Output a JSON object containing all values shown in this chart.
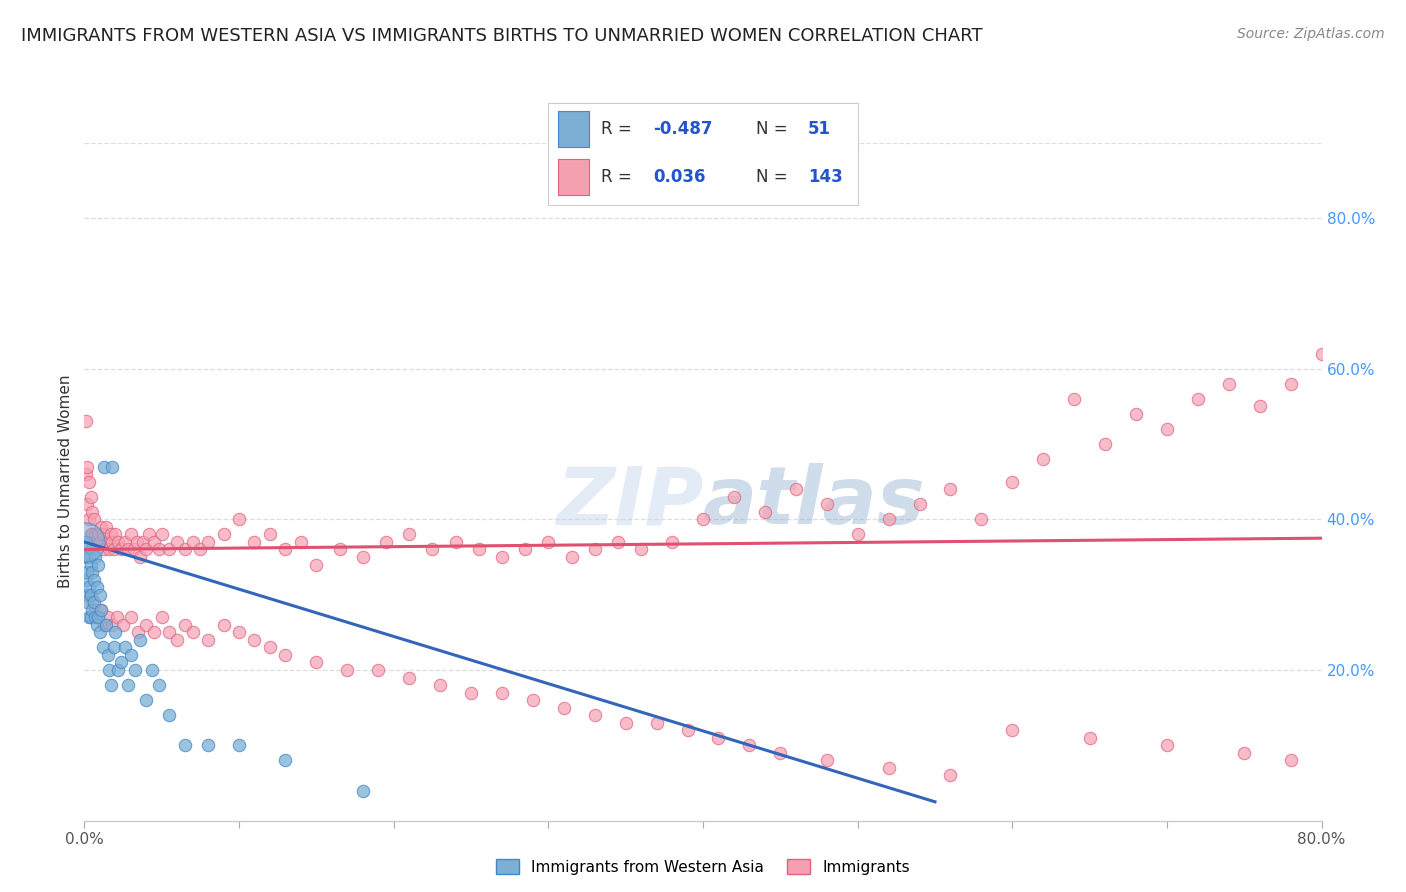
{
  "title": "IMMIGRANTS FROM WESTERN ASIA VS IMMIGRANTS BIRTHS TO UNMARRIED WOMEN CORRELATION CHART",
  "source": "Source: ZipAtlas.com",
  "ylabel": "Births to Unmarried Women",
  "right_yticks": [
    "80.0%",
    "60.0%",
    "40.0%",
    "20.0%"
  ],
  "right_ytick_vals": [
    0.8,
    0.6,
    0.4,
    0.2
  ],
  "color_blue": "#7BAFD4",
  "color_blue_edge": "#4488CC",
  "color_pink": "#F4A0B0",
  "color_pink_edge": "#E06080",
  "watermark": "ZIPatlas",
  "blue_scatter_x": [
    0.001,
    0.001,
    0.001,
    0.002,
    0.002,
    0.002,
    0.003,
    0.003,
    0.003,
    0.004,
    0.004,
    0.004,
    0.005,
    0.005,
    0.005,
    0.006,
    0.006,
    0.007,
    0.007,
    0.008,
    0.008,
    0.009,
    0.009,
    0.01,
    0.01,
    0.011,
    0.012,
    0.013,
    0.014,
    0.015,
    0.016,
    0.017,
    0.018,
    0.019,
    0.02,
    0.022,
    0.024,
    0.026,
    0.028,
    0.03,
    0.033,
    0.036,
    0.04,
    0.044,
    0.048,
    0.055,
    0.065,
    0.08,
    0.1,
    0.13,
    0.18
  ],
  "blue_scatter_y": [
    0.37,
    0.35,
    0.32,
    0.33,
    0.3,
    0.29,
    0.35,
    0.31,
    0.27,
    0.34,
    0.3,
    0.27,
    0.36,
    0.33,
    0.28,
    0.32,
    0.29,
    0.35,
    0.27,
    0.31,
    0.26,
    0.34,
    0.27,
    0.3,
    0.25,
    0.28,
    0.23,
    0.47,
    0.26,
    0.22,
    0.2,
    0.18,
    0.47,
    0.23,
    0.25,
    0.2,
    0.21,
    0.23,
    0.18,
    0.22,
    0.2,
    0.24,
    0.16,
    0.2,
    0.18,
    0.14,
    0.1,
    0.1,
    0.1,
    0.08,
    0.04
  ],
  "pink_scatter_x": [
    0.001,
    0.001,
    0.002,
    0.002,
    0.003,
    0.003,
    0.004,
    0.004,
    0.005,
    0.005,
    0.006,
    0.006,
    0.007,
    0.008,
    0.009,
    0.01,
    0.011,
    0.012,
    0.013,
    0.014,
    0.015,
    0.016,
    0.017,
    0.018,
    0.019,
    0.02,
    0.022,
    0.024,
    0.026,
    0.028,
    0.03,
    0.032,
    0.034,
    0.036,
    0.038,
    0.04,
    0.042,
    0.045,
    0.048,
    0.05,
    0.055,
    0.06,
    0.065,
    0.07,
    0.075,
    0.08,
    0.09,
    0.1,
    0.11,
    0.12,
    0.13,
    0.14,
    0.15,
    0.165,
    0.18,
    0.195,
    0.21,
    0.225,
    0.24,
    0.255,
    0.27,
    0.285,
    0.3,
    0.315,
    0.33,
    0.345,
    0.36,
    0.38,
    0.4,
    0.42,
    0.44,
    0.46,
    0.48,
    0.5,
    0.52,
    0.54,
    0.56,
    0.58,
    0.6,
    0.62,
    0.64,
    0.66,
    0.68,
    0.7,
    0.72,
    0.74,
    0.76,
    0.78,
    0.8,
    0.003,
    0.005,
    0.007,
    0.009,
    0.011,
    0.013,
    0.015,
    0.018,
    0.021,
    0.025,
    0.03,
    0.035,
    0.04,
    0.045,
    0.05,
    0.055,
    0.06,
    0.065,
    0.07,
    0.08,
    0.09,
    0.1,
    0.11,
    0.12,
    0.13,
    0.15,
    0.17,
    0.19,
    0.21,
    0.23,
    0.25,
    0.27,
    0.29,
    0.31,
    0.33,
    0.35,
    0.37,
    0.39,
    0.41,
    0.43,
    0.45,
    0.48,
    0.52,
    0.56,
    0.6,
    0.65,
    0.7,
    0.75,
    0.78
  ],
  "pink_scatter_y": [
    0.53,
    0.46,
    0.47,
    0.42,
    0.45,
    0.4,
    0.43,
    0.38,
    0.41,
    0.38,
    0.4,
    0.37,
    0.38,
    0.37,
    0.38,
    0.37,
    0.39,
    0.38,
    0.36,
    0.39,
    0.37,
    0.36,
    0.38,
    0.37,
    0.36,
    0.38,
    0.37,
    0.36,
    0.37,
    0.36,
    0.38,
    0.36,
    0.37,
    0.35,
    0.37,
    0.36,
    0.38,
    0.37,
    0.36,
    0.38,
    0.36,
    0.37,
    0.36,
    0.37,
    0.36,
    0.37,
    0.38,
    0.4,
    0.37,
    0.38,
    0.36,
    0.37,
    0.34,
    0.36,
    0.35,
    0.37,
    0.38,
    0.36,
    0.37,
    0.36,
    0.35,
    0.36,
    0.37,
    0.35,
    0.36,
    0.37,
    0.36,
    0.37,
    0.4,
    0.43,
    0.41,
    0.44,
    0.42,
    0.38,
    0.4,
    0.42,
    0.44,
    0.4,
    0.45,
    0.48,
    0.56,
    0.5,
    0.54,
    0.52,
    0.56,
    0.58,
    0.55,
    0.58,
    0.62,
    0.3,
    0.29,
    0.28,
    0.27,
    0.28,
    0.26,
    0.27,
    0.26,
    0.27,
    0.26,
    0.27,
    0.25,
    0.26,
    0.25,
    0.27,
    0.25,
    0.24,
    0.26,
    0.25,
    0.24,
    0.26,
    0.25,
    0.24,
    0.23,
    0.22,
    0.21,
    0.2,
    0.2,
    0.19,
    0.18,
    0.17,
    0.17,
    0.16,
    0.15,
    0.14,
    0.13,
    0.13,
    0.12,
    0.11,
    0.1,
    0.09,
    0.08,
    0.07,
    0.06,
    0.12,
    0.11,
    0.1,
    0.09,
    0.08
  ],
  "blue_trend_x": [
    0.0,
    0.55
  ],
  "blue_trend_y": [
    0.37,
    0.025
  ],
  "pink_trend_x": [
    0.0,
    0.8
  ],
  "pink_trend_y": [
    0.36,
    0.375
  ],
  "xlim": [
    0.0,
    0.8
  ],
  "ylim": [
    0.0,
    0.9
  ],
  "grid_color": "#DDDDDD",
  "background_color": "#FFFFFF",
  "title_fontsize": 13,
  "source_fontsize": 10
}
